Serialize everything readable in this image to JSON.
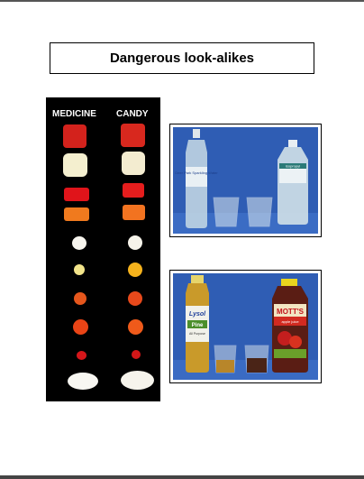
{
  "page": {
    "title": "Dangerous look-alikes"
  },
  "pill_panel": {
    "left_label": "MEDICINE",
    "right_label": "CANDY"
  },
  "photo_water": {
    "bottle_left_label": "Deer Park Sparkling Water",
    "bottle_right_label": "isopropyl"
  },
  "photo_juice": {
    "bottle_left_brand": "Lysol",
    "bottle_left_sub": "Pine",
    "bottle_left_sub2": "All Purpose",
    "bottle_right_brand": "MOTT'S",
    "bottle_right_sub": "apple juice"
  },
  "colors": {
    "photo_background": "#2f5db4",
    "panel_background": "#000000"
  }
}
